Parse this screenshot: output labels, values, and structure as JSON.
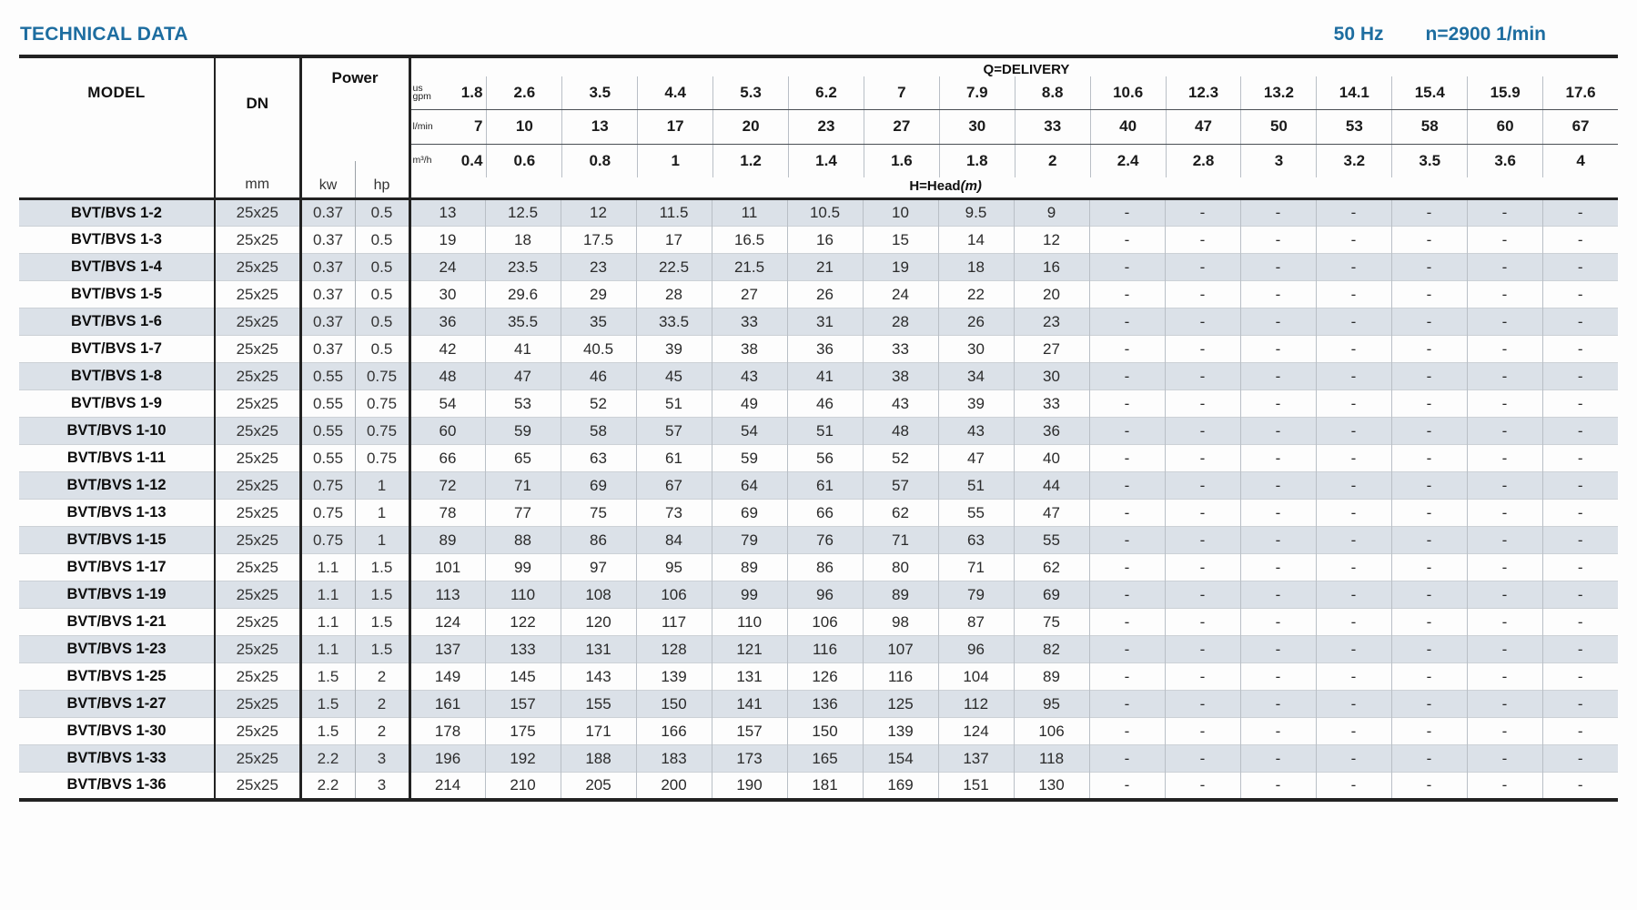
{
  "header": {
    "title": "TECHNICAL DATA",
    "frequency": "50 Hz",
    "speed": "n=2900 1/min"
  },
  "table": {
    "model_header": "MODEL",
    "dn_header": "DN",
    "dn_unit": "mm",
    "power_header": "Power",
    "power_units": [
      "kw",
      "hp"
    ],
    "delivery_header": "Q=DELIVERY",
    "head_label": "H=Head",
    "head_unit": "(m)",
    "unit_rows": [
      {
        "label": "us gpm",
        "values": [
          "1.8",
          "2.6",
          "3.5",
          "4.4",
          "5.3",
          "6.2",
          "7",
          "7.9",
          "8.8",
          "10.6",
          "12.3",
          "13.2",
          "14.1",
          "15.4",
          "15.9",
          "17.6"
        ]
      },
      {
        "label": "l/min",
        "values": [
          "7",
          "10",
          "13",
          "17",
          "20",
          "23",
          "27",
          "30",
          "33",
          "40",
          "47",
          "50",
          "53",
          "58",
          "60",
          "67"
        ]
      },
      {
        "label": "m³/h",
        "values": [
          "0.4",
          "0.6",
          "0.8",
          "1",
          "1.2",
          "1.4",
          "1.6",
          "1.8",
          "2",
          "2.4",
          "2.8",
          "3",
          "3.2",
          "3.5",
          "3.6",
          "4"
        ]
      }
    ],
    "rows": [
      {
        "model": "BVT/BVS 1-2",
        "dn": "25x25",
        "kw": "0.37",
        "hp": "0.5",
        "head": [
          "13",
          "12.5",
          "12",
          "11.5",
          "11",
          "10.5",
          "10",
          "9.5",
          "9",
          "-",
          "-",
          "-",
          "-",
          "-",
          "-",
          "-"
        ]
      },
      {
        "model": "BVT/BVS 1-3",
        "dn": "25x25",
        "kw": "0.37",
        "hp": "0.5",
        "head": [
          "19",
          "18",
          "17.5",
          "17",
          "16.5",
          "16",
          "15",
          "14",
          "12",
          "-",
          "-",
          "-",
          "-",
          "-",
          "-",
          "-"
        ]
      },
      {
        "model": "BVT/BVS 1-4",
        "dn": "25x25",
        "kw": "0.37",
        "hp": "0.5",
        "head": [
          "24",
          "23.5",
          "23",
          "22.5",
          "21.5",
          "21",
          "19",
          "18",
          "16",
          "-",
          "-",
          "-",
          "-",
          "-",
          "-",
          "-"
        ]
      },
      {
        "model": "BVT/BVS 1-5",
        "dn": "25x25",
        "kw": "0.37",
        "hp": "0.5",
        "head": [
          "30",
          "29.6",
          "29",
          "28",
          "27",
          "26",
          "24",
          "22",
          "20",
          "-",
          "-",
          "-",
          "-",
          "-",
          "-",
          "-"
        ]
      },
      {
        "model": "BVT/BVS 1-6",
        "dn": "25x25",
        "kw": "0.37",
        "hp": "0.5",
        "head": [
          "36",
          "35.5",
          "35",
          "33.5",
          "33",
          "31",
          "28",
          "26",
          "23",
          "-",
          "-",
          "-",
          "-",
          "-",
          "-",
          "-"
        ]
      },
      {
        "model": "BVT/BVS 1-7",
        "dn": "25x25",
        "kw": "0.37",
        "hp": "0.5",
        "head": [
          "42",
          "41",
          "40.5",
          "39",
          "38",
          "36",
          "33",
          "30",
          "27",
          "-",
          "-",
          "-",
          "-",
          "-",
          "-",
          "-"
        ]
      },
      {
        "model": "BVT/BVS 1-8",
        "dn": "25x25",
        "kw": "0.55",
        "hp": "0.75",
        "head": [
          "48",
          "47",
          "46",
          "45",
          "43",
          "41",
          "38",
          "34",
          "30",
          "-",
          "-",
          "-",
          "-",
          "-",
          "-",
          "-"
        ]
      },
      {
        "model": "BVT/BVS 1-9",
        "dn": "25x25",
        "kw": "0.55",
        "hp": "0.75",
        "head": [
          "54",
          "53",
          "52",
          "51",
          "49",
          "46",
          "43",
          "39",
          "33",
          "-",
          "-",
          "-",
          "-",
          "-",
          "-",
          "-"
        ]
      },
      {
        "model": "BVT/BVS 1-10",
        "dn": "25x25",
        "kw": "0.55",
        "hp": "0.75",
        "head": [
          "60",
          "59",
          "58",
          "57",
          "54",
          "51",
          "48",
          "43",
          "36",
          "-",
          "-",
          "-",
          "-",
          "-",
          "-",
          "-"
        ]
      },
      {
        "model": "BVT/BVS 1-11",
        "dn": "25x25",
        "kw": "0.55",
        "hp": "0.75",
        "head": [
          "66",
          "65",
          "63",
          "61",
          "59",
          "56",
          "52",
          "47",
          "40",
          "-",
          "-",
          "-",
          "-",
          "-",
          "-",
          "-"
        ]
      },
      {
        "model": "BVT/BVS 1-12",
        "dn": "25x25",
        "kw": "0.75",
        "hp": "1",
        "head": [
          "72",
          "71",
          "69",
          "67",
          "64",
          "61",
          "57",
          "51",
          "44",
          "-",
          "-",
          "-",
          "-",
          "-",
          "-",
          "-"
        ]
      },
      {
        "model": "BVT/BVS 1-13",
        "dn": "25x25",
        "kw": "0.75",
        "hp": "1",
        "head": [
          "78",
          "77",
          "75",
          "73",
          "69",
          "66",
          "62",
          "55",
          "47",
          "-",
          "-",
          "-",
          "-",
          "-",
          "-",
          "-"
        ]
      },
      {
        "model": "BVT/BVS 1-15",
        "dn": "25x25",
        "kw": "0.75",
        "hp": "1",
        "head": [
          "89",
          "88",
          "86",
          "84",
          "79",
          "76",
          "71",
          "63",
          "55",
          "-",
          "-",
          "-",
          "-",
          "-",
          "-",
          "-"
        ]
      },
      {
        "model": "BVT/BVS 1-17",
        "dn": "25x25",
        "kw": "1.1",
        "hp": "1.5",
        "head": [
          "101",
          "99",
          "97",
          "95",
          "89",
          "86",
          "80",
          "71",
          "62",
          "-",
          "-",
          "-",
          "-",
          "-",
          "-",
          "-"
        ]
      },
      {
        "model": "BVT/BVS 1-19",
        "dn": "25x25",
        "kw": "1.1",
        "hp": "1.5",
        "head": [
          "113",
          "110",
          "108",
          "106",
          "99",
          "96",
          "89",
          "79",
          "69",
          "-",
          "-",
          "-",
          "-",
          "-",
          "-",
          "-"
        ]
      },
      {
        "model": "BVT/BVS 1-21",
        "dn": "25x25",
        "kw": "1.1",
        "hp": "1.5",
        "head": [
          "124",
          "122",
          "120",
          "117",
          "110",
          "106",
          "98",
          "87",
          "75",
          "-",
          "-",
          "-",
          "-",
          "-",
          "-",
          "-"
        ]
      },
      {
        "model": "BVT/BVS 1-23",
        "dn": "25x25",
        "kw": "1.1",
        "hp": "1.5",
        "head": [
          "137",
          "133",
          "131",
          "128",
          "121",
          "116",
          "107",
          "96",
          "82",
          "-",
          "-",
          "-",
          "-",
          "-",
          "-",
          "-"
        ]
      },
      {
        "model": "BVT/BVS 1-25",
        "dn": "25x25",
        "kw": "1.5",
        "hp": "2",
        "head": [
          "149",
          "145",
          "143",
          "139",
          "131",
          "126",
          "116",
          "104",
          "89",
          "-",
          "-",
          "-",
          "-",
          "-",
          "-",
          "-"
        ]
      },
      {
        "model": "BVT/BVS 1-27",
        "dn": "25x25",
        "kw": "1.5",
        "hp": "2",
        "head": [
          "161",
          "157",
          "155",
          "150",
          "141",
          "136",
          "125",
          "112",
          "95",
          "-",
          "-",
          "-",
          "-",
          "-",
          "-",
          "-"
        ]
      },
      {
        "model": "BVT/BVS 1-30",
        "dn": "25x25",
        "kw": "1.5",
        "hp": "2",
        "head": [
          "178",
          "175",
          "171",
          "166",
          "157",
          "150",
          "139",
          "124",
          "106",
          "-",
          "-",
          "-",
          "-",
          "-",
          "-",
          "-"
        ]
      },
      {
        "model": "BVT/BVS 1-33",
        "dn": "25x25",
        "kw": "2.2",
        "hp": "3",
        "head": [
          "196",
          "192",
          "188",
          "183",
          "173",
          "165",
          "154",
          "137",
          "118",
          "-",
          "-",
          "-",
          "-",
          "-",
          "-",
          "-"
        ]
      },
      {
        "model": "BVT/BVS 1-36",
        "dn": "25x25",
        "kw": "2.2",
        "hp": "3",
        "head": [
          "214",
          "210",
          "205",
          "200",
          "190",
          "181",
          "169",
          "151",
          "130",
          "-",
          "-",
          "-",
          "-",
          "-",
          "-",
          "-"
        ]
      }
    ]
  }
}
